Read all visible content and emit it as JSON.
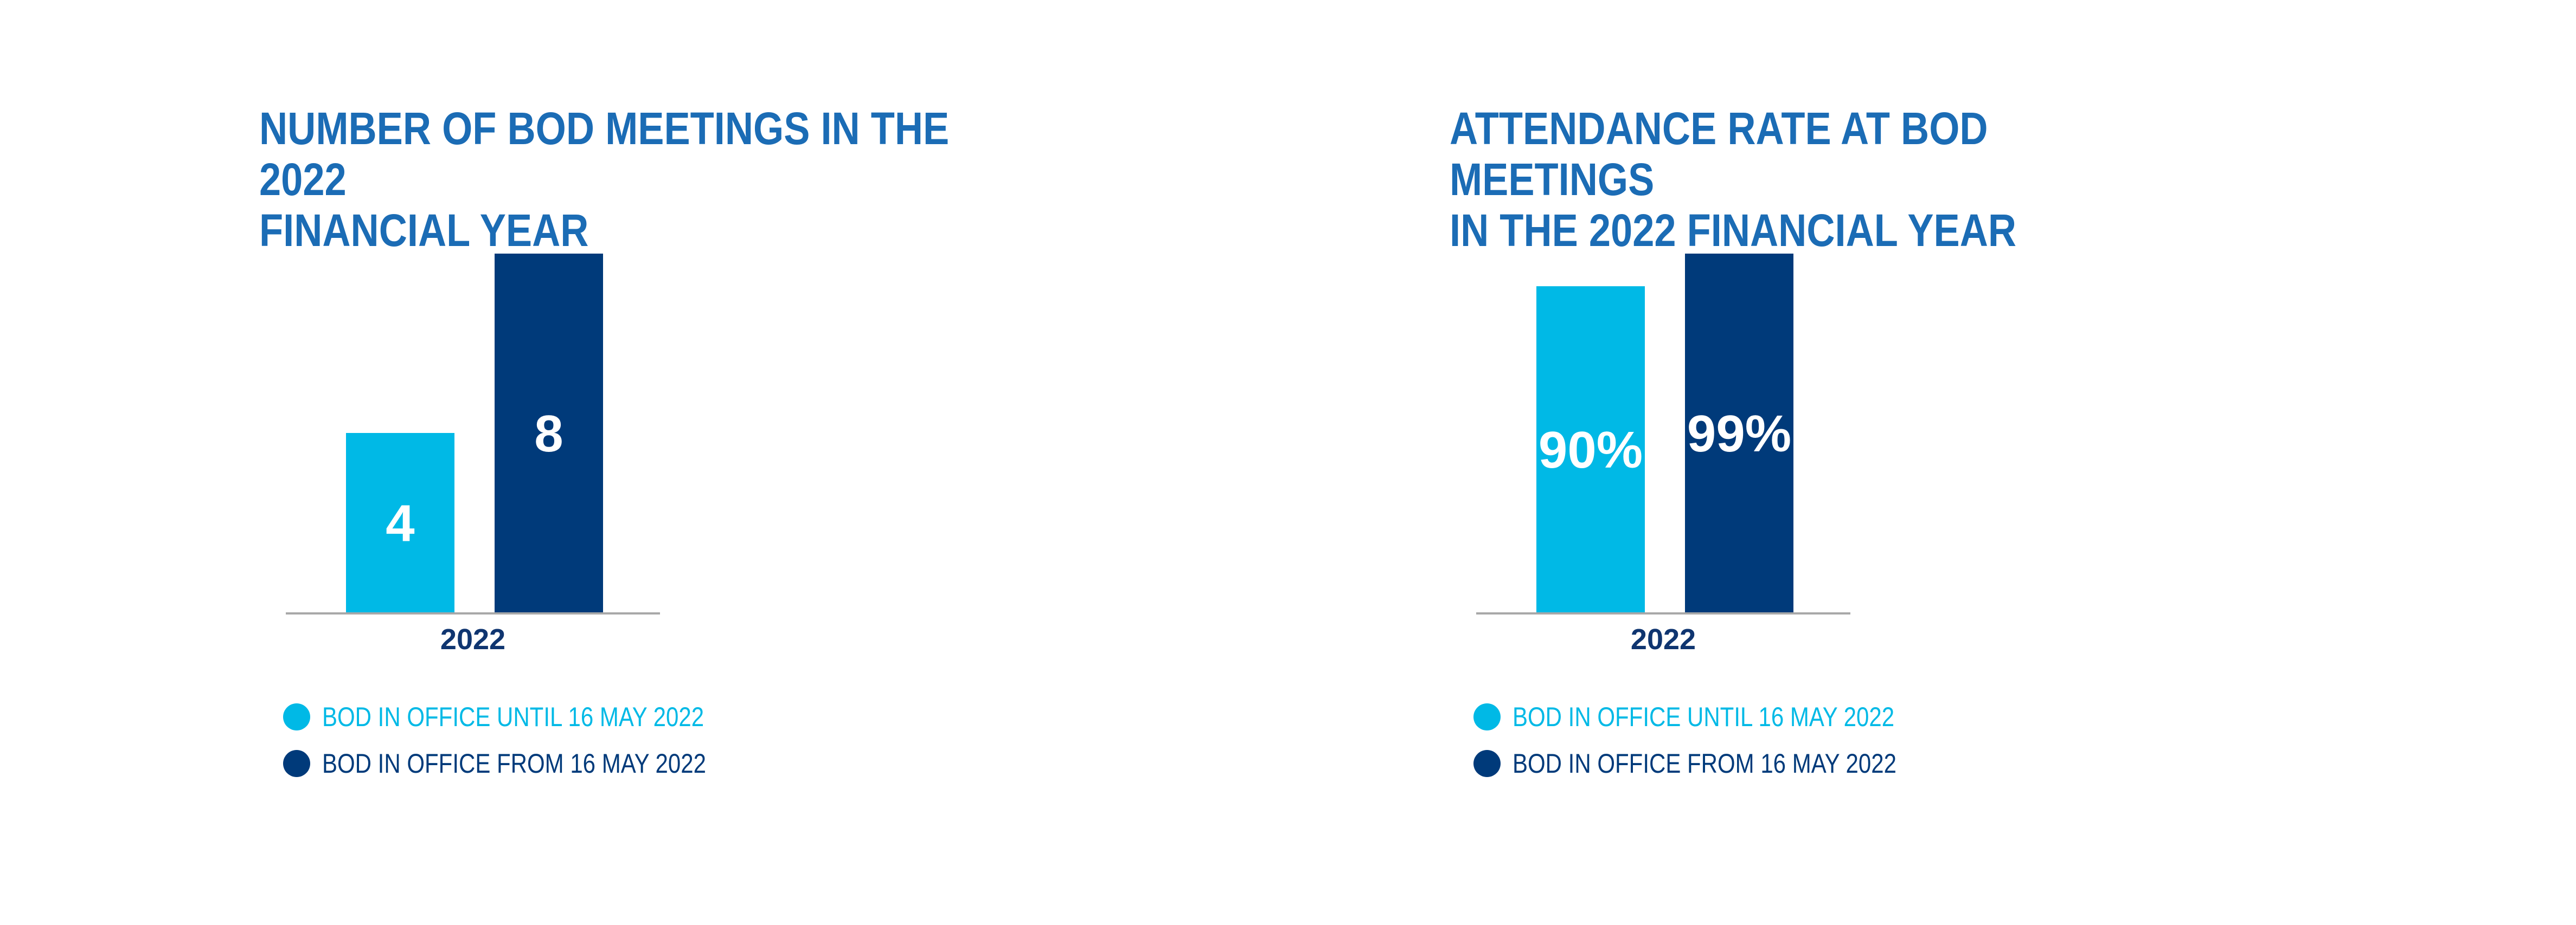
{
  "colors": {
    "title": "#1b6cb5",
    "until": "#00b9e6",
    "from": "#003a7a",
    "axis": "#a8a8a8",
    "tick": "#0f3570",
    "bar_text": "#ffffff"
  },
  "chart_data": [
    {
      "type": "bar",
      "title_lines": [
        "NUMBER OF BOD MEETINGS IN THE 2022",
        "FINANCIAL YEAR"
      ],
      "categories": [
        "2022"
      ],
      "series": [
        {
          "name": "BOD IN OFFICE UNTIL 16 MAY 2022",
          "values": [
            4
          ],
          "labels": [
            "4"
          ],
          "color": "#00b9e6"
        },
        {
          "name": "BOD IN OFFICE FROM 16 MAY 2022",
          "values": [
            8
          ],
          "labels": [
            "8"
          ],
          "color": "#003a7a"
        }
      ],
      "ylim": [
        0,
        8
      ],
      "grid": false,
      "legend_position": "bottom-left"
    },
    {
      "type": "bar",
      "title_lines": [
        "ATTENDANCE RATE AT BOD MEETINGS",
        "IN THE 2022 FINANCIAL YEAR"
      ],
      "categories": [
        "2022"
      ],
      "series": [
        {
          "name": "BOD IN OFFICE UNTIL 16 MAY 2022",
          "values": [
            90
          ],
          "labels": [
            "90%"
          ],
          "color": "#00b9e6"
        },
        {
          "name": "BOD IN OFFICE FROM 16 MAY 2022",
          "values": [
            99
          ],
          "labels": [
            "99%"
          ],
          "color": "#003a7a"
        }
      ],
      "ylim": [
        0,
        99
      ],
      "grid": false,
      "legend_position": "bottom-left"
    }
  ]
}
